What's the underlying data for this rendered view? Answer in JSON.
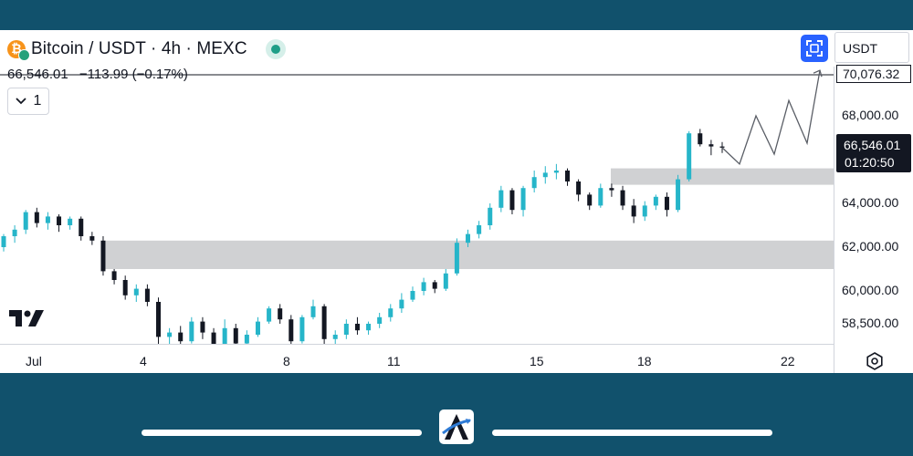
{
  "header": {
    "symbol_title": "Bitcoin / USDT · 4h · MEXC",
    "price": "66,546.01",
    "change": "−113.99 (−0.17%)",
    "interval_count": "1",
    "icons": [
      "bitcoin-icon",
      "tether-icon",
      "status-dot-icon",
      "chevron-down-icon",
      "fullscreen-icon"
    ]
  },
  "toolbar": {
    "currency": "USDT"
  },
  "price_axis": {
    "labels": [
      "68,000.00",
      "66,000.00",
      "64,000.00",
      "62,000.00",
      "60,000.00",
      "58,500.00"
    ],
    "top_tag": "70,076.32",
    "last_price": "66,546.01",
    "countdown": "01:20:50"
  },
  "time_axis": {
    "labels": [
      "Jul",
      "4",
      "8",
      "11",
      "15",
      "18",
      "22"
    ]
  },
  "colors": {
    "bull": "#26b5c9",
    "bear": "#131722",
    "zone": "#d0d1d3",
    "accent": "#2962ff",
    "frame": "#11516c"
  },
  "chart_data": {
    "type": "candlestick",
    "title": "Bitcoin / USDT · 4h · MEXC",
    "y_ticks": [
      58500,
      60000,
      62000,
      64000,
      66000,
      68000
    ],
    "ylim": [
      57300,
      70600
    ],
    "x_ticks": [
      "Jul",
      "4",
      "8",
      "11",
      "15",
      "18",
      "22"
    ],
    "last_price": 66546.01,
    "marked_price": 70076.32,
    "zones": [
      {
        "low": 61000,
        "high": 62300
      },
      {
        "low": 64850,
        "high": 65600
      }
    ],
    "candles": [
      [
        62000,
        62600,
        61800,
        62500
      ],
      [
        62500,
        63000,
        62200,
        62800
      ],
      [
        62800,
        63700,
        62600,
        63600
      ],
      [
        63600,
        63800,
        62900,
        63100
      ],
      [
        63100,
        63600,
        62800,
        63400
      ],
      [
        63400,
        63500,
        62700,
        63000
      ],
      [
        63000,
        63400,
        62800,
        63300
      ],
      [
        63300,
        63400,
        62300,
        62500
      ],
      [
        62500,
        62700,
        62100,
        62300
      ],
      [
        62300,
        62500,
        60700,
        60900
      ],
      [
        60900,
        61000,
        60300,
        60500
      ],
      [
        60500,
        60700,
        59600,
        59800
      ],
      [
        59800,
        60300,
        59500,
        60100
      ],
      [
        60100,
        60300,
        59300,
        59500
      ],
      [
        59500,
        59700,
        57300,
        57900
      ],
      [
        57900,
        58300,
        57500,
        58100
      ],
      [
        58100,
        58400,
        57400,
        57700
      ],
      [
        57700,
        58800,
        57600,
        58600
      ],
      [
        58600,
        58800,
        57800,
        58100
      ],
      [
        58100,
        58300,
        57300,
        57500
      ],
      [
        57500,
        58700,
        57400,
        58300
      ],
      [
        58300,
        58500,
        57400,
        57600
      ],
      [
        57600,
        58200,
        57500,
        58000
      ],
      [
        58000,
        58800,
        57900,
        58600
      ],
      [
        58600,
        59300,
        58500,
        59200
      ],
      [
        59200,
        59400,
        58500,
        58700
      ],
      [
        58700,
        58900,
        57400,
        57700
      ],
      [
        57700,
        58900,
        57600,
        58800
      ],
      [
        58800,
        59600,
        58700,
        59300
      ],
      [
        59300,
        59400,
        57500,
        57800
      ],
      [
        57800,
        58200,
        57500,
        58000
      ],
      [
        58000,
        58700,
        57800,
        58500
      ],
      [
        58500,
        58800,
        58000,
        58200
      ],
      [
        58200,
        58600,
        58000,
        58500
      ],
      [
        58500,
        59000,
        58300,
        58800
      ],
      [
        58800,
        59400,
        58600,
        59200
      ],
      [
        59200,
        59900,
        59000,
        59600
      ],
      [
        59600,
        60200,
        59500,
        60000
      ],
      [
        60000,
        60600,
        59800,
        60400
      ],
      [
        60400,
        60500,
        59900,
        60100
      ],
      [
        60100,
        61000,
        60000,
        60800
      ],
      [
        60800,
        62400,
        60700,
        62200
      ],
      [
        62200,
        62800,
        62000,
        62600
      ],
      [
        62600,
        63200,
        62400,
        63000
      ],
      [
        63000,
        64000,
        62800,
        63800
      ],
      [
        63800,
        64800,
        63600,
        64600
      ],
      [
        64600,
        64700,
        63500,
        63700
      ],
      [
        63700,
        64800,
        63400,
        64700
      ],
      [
        64700,
        65500,
        64500,
        65200
      ],
      [
        65200,
        65700,
        64900,
        65400
      ],
      [
        65400,
        65800,
        65100,
        65500
      ],
      [
        65500,
        65600,
        64800,
        65000
      ],
      [
        65000,
        65100,
        64100,
        64400
      ],
      [
        64400,
        64500,
        63700,
        63900
      ],
      [
        63900,
        64900,
        63800,
        64700
      ],
      [
        64700,
        64900,
        64300,
        64600
      ],
      [
        64600,
        64800,
        63700,
        63900
      ],
      [
        63900,
        64200,
        63100,
        63400
      ],
      [
        63400,
        64100,
        63200,
        63900
      ],
      [
        63900,
        64400,
        63700,
        64300
      ],
      [
        64300,
        64500,
        63400,
        63700
      ],
      [
        63700,
        65300,
        63600,
        65100
      ],
      [
        65100,
        67300,
        65000,
        67200
      ],
      [
        67200,
        67400,
        66600,
        66700
      ],
      [
        66700,
        66900,
        66200,
        66600
      ],
      [
        66600,
        66800,
        66300,
        66546.01
      ]
    ],
    "projection": [
      [
        66546,
        66546
      ],
      [
        65800,
        65800
      ],
      [
        68000,
        68000
      ],
      [
        66250,
        66250
      ],
      [
        68700,
        68700
      ],
      [
        66750,
        66750
      ],
      [
        70076,
        70076
      ]
    ]
  }
}
